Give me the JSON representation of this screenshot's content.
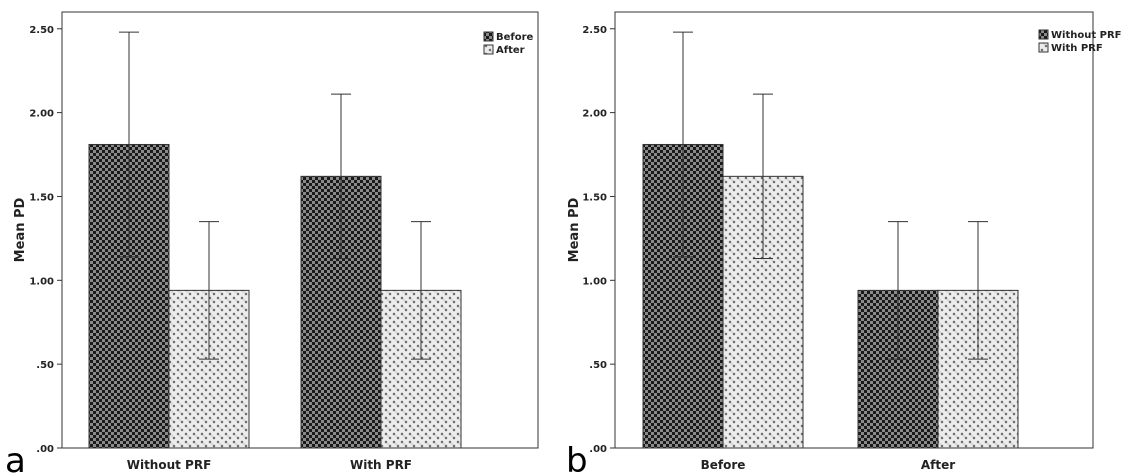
{
  "chart_data": [
    {
      "type": "bar",
      "panel_label": "a",
      "categories": [
        "Without PRF",
        "With PRF"
      ],
      "series": [
        {
          "name": "Before",
          "values": [
            1.81,
            1.62
          ],
          "error_high": [
            2.48,
            2.11
          ],
          "error_low": [
            1.14,
            1.13
          ],
          "pattern": "dark-check"
        },
        {
          "name": "After",
          "values": [
            0.94,
            0.94
          ],
          "error_high": [
            1.35,
            1.35
          ],
          "error_low": [
            0.53,
            0.53
          ],
          "pattern": "light-cross"
        }
      ],
      "ylabel": "Mean PD",
      "xlabel": "",
      "ylim": [
        0,
        2.6
      ],
      "yticks": [
        0,
        0.5,
        1.0,
        1.5,
        2.0,
        2.5
      ],
      "ytick_labels": [
        ".00",
        ".50",
        "1.00",
        "1.50",
        "2.00",
        "2.50"
      ],
      "legend_position": "top-right"
    },
    {
      "type": "bar",
      "panel_label": "b",
      "categories": [
        "Before",
        "After"
      ],
      "series": [
        {
          "name": "Without PRF",
          "values": [
            1.81,
            0.94
          ],
          "error_high": [
            2.48,
            1.35
          ],
          "error_low": [
            1.14,
            0.53
          ],
          "pattern": "dark-check"
        },
        {
          "name": "With PRF",
          "values": [
            1.62,
            0.94
          ],
          "error_high": [
            2.11,
            1.35
          ],
          "error_low": [
            1.13,
            0.53
          ],
          "pattern": "light-cross"
        }
      ],
      "ylabel": "Mean PD",
      "xlabel": "",
      "ylim": [
        0,
        2.6
      ],
      "yticks": [
        0,
        0.5,
        1.0,
        1.5,
        2.0,
        2.5
      ],
      "ytick_labels": [
        ".00",
        ".50",
        "1.00",
        "1.50",
        "2.00",
        "2.50"
      ],
      "legend_position": "top-right"
    }
  ],
  "colors": {
    "dark_pattern_fg": "#1a1a1a",
    "dark_pattern_bg": "#8a8a8a",
    "light_pattern_fg": "#666666",
    "light_pattern_bg": "#ececec",
    "axis": "#333333"
  }
}
